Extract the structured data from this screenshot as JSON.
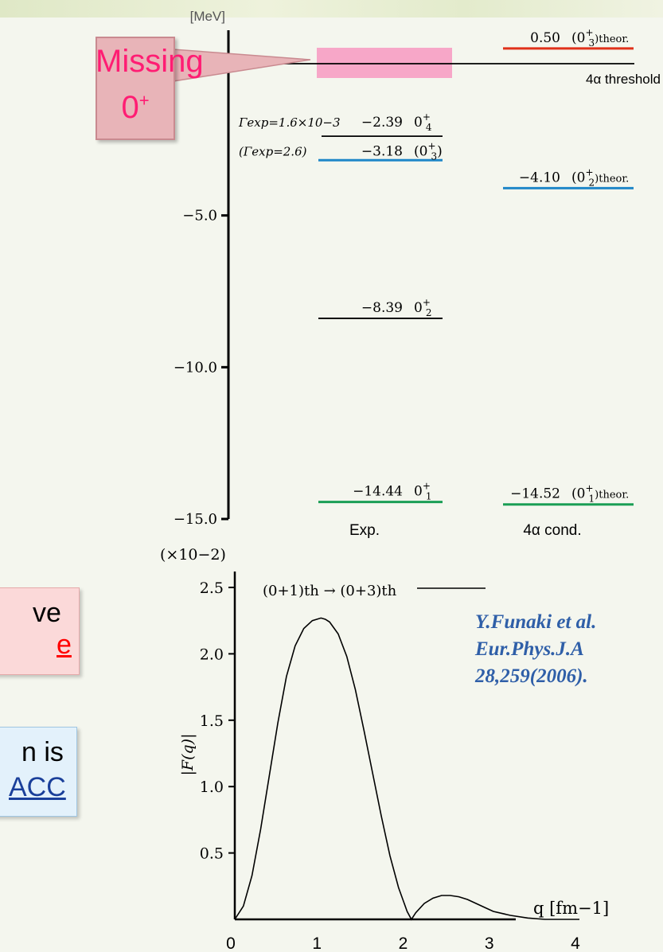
{
  "left_cut": {
    "pink_box": {
      "line1": "ve",
      "line2": "e",
      "line2_underline_color": "#ff0000"
    },
    "blue_box": {
      "line1": "n is",
      "line2": "ACC",
      "line2_color": "#1a3f9a"
    }
  },
  "callout": {
    "text": "Missing",
    "sub": "0",
    "sup": "+",
    "color": "#ff1d73"
  },
  "reference": {
    "line1": "Y.Funaki et al.",
    "line2": "Eur.Phys.J.A",
    "line3": "28,259(2006)."
  },
  "chart_data": [
    {
      "type": "level-scheme",
      "yunit": "[MeV]",
      "ylim": [
        -15.0,
        0.8
      ],
      "yticks": [
        {
          "value": -5.0,
          "label": "−5.0"
        },
        {
          "value": -10.0,
          "label": "−10.0"
        },
        {
          "value": -15.0,
          "label": "−15.0"
        }
      ],
      "columns": [
        {
          "key": "exp",
          "label": "Exp."
        },
        {
          "key": "cond",
          "label": "4α cond."
        }
      ],
      "threshold": {
        "energy": 0.0,
        "label": "4α threshold"
      },
      "missing_band": {
        "energy": 0.0,
        "color": "#f7a7c8"
      },
      "levels": [
        {
          "column": "exp",
          "energy": -2.39,
          "value_label": "−2.39",
          "state": "0",
          "sub": "4",
          "sup": "+",
          "color": "#000000",
          "width_note": "Γexp=1.6×10−3"
        },
        {
          "column": "exp",
          "energy": -3.18,
          "value_label": "−3.18",
          "state": "(0",
          "sub": "3",
          "sup": "+",
          "close": ")",
          "color": "#1f87c8",
          "width_note": "(Γexp=2.6)"
        },
        {
          "column": "exp",
          "energy": -8.39,
          "value_label": "−8.39",
          "state": "0",
          "sub": "2",
          "sup": "+",
          "color": "#000000"
        },
        {
          "column": "exp",
          "energy": -14.44,
          "value_label": "−14.44",
          "state": "0",
          "sub": "1",
          "sup": "+",
          "color": "#1a9e55"
        },
        {
          "column": "cond",
          "energy": 0.5,
          "value_label": "0.50",
          "state": "(0",
          "sub": "3",
          "sup": "+",
          "close": ")theor.",
          "color": "#e0311a"
        },
        {
          "column": "cond",
          "energy": -4.1,
          "value_label": "−4.10",
          "state": "(0",
          "sub": "2",
          "sup": "+",
          "close": ")theor.",
          "color": "#1f87c8"
        },
        {
          "column": "cond",
          "energy": -14.52,
          "value_label": "−14.52",
          "state": "(0",
          "sub": "1",
          "sup": "+",
          "close": ")theor.",
          "color": "#1a9e55"
        }
      ]
    },
    {
      "type": "line",
      "ylabel": "|F(q)|",
      "yscale_note": "(×10−2)",
      "xlabel": "q [fm−1]",
      "xlim": [
        0,
        4
      ],
      "ylim": [
        0,
        2.5
      ],
      "xticks": [
        "0",
        "1",
        "2",
        "3",
        "4"
      ],
      "yticks": [
        "0.5",
        "1.0",
        "1.5",
        "2.0",
        "2.5"
      ],
      "legend": "(0+1)th → (0+3)th",
      "series": [
        {
          "x": [
            0.0,
            0.1,
            0.2,
            0.3,
            0.4,
            0.5,
            0.6,
            0.7,
            0.8,
            0.9,
            1.0,
            1.05,
            1.1,
            1.2,
            1.3,
            1.4,
            1.5,
            1.6,
            1.7,
            1.8,
            1.9,
            2.0,
            2.05,
            2.1,
            2.2,
            2.3,
            2.4,
            2.5,
            2.6,
            2.7,
            2.8,
            2.9,
            3.0,
            3.2,
            3.4,
            3.6,
            3.8,
            4.0
          ],
          "y": [
            0.0,
            0.1,
            0.33,
            0.68,
            1.08,
            1.48,
            1.83,
            2.06,
            2.19,
            2.25,
            2.27,
            2.26,
            2.24,
            2.15,
            1.98,
            1.73,
            1.42,
            1.1,
            0.78,
            0.48,
            0.24,
            0.06,
            0.0,
            0.05,
            0.12,
            0.16,
            0.18,
            0.18,
            0.17,
            0.15,
            0.12,
            0.09,
            0.06,
            0.03,
            0.01,
            0.0,
            0.0,
            0.0
          ]
        }
      ]
    }
  ]
}
